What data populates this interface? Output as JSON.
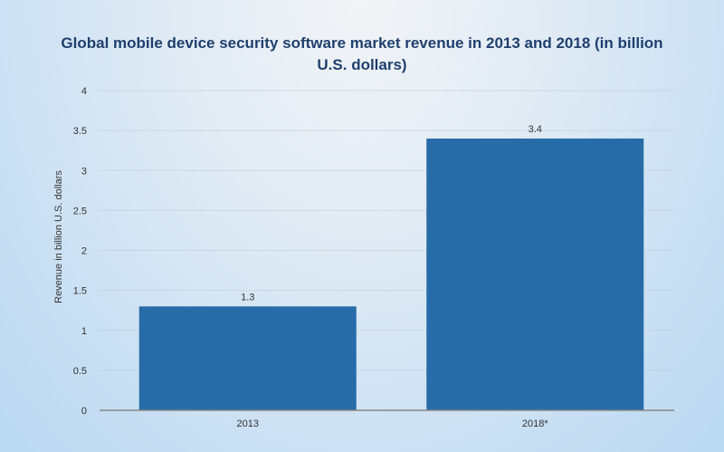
{
  "chart_data": {
    "type": "bar",
    "title": "Global mobile device security software market revenue in 2013 and 2018 (in billion U.S. dollars)",
    "categories": [
      "2013",
      "2018*"
    ],
    "values": [
      1.3,
      3.4
    ],
    "value_labels": [
      "1.3",
      "3.4"
    ],
    "xlabel": "",
    "ylabel": "Revenue in billion U.S. dollars",
    "ylim": [
      0,
      4
    ],
    "yticks": [
      0,
      0.5,
      1,
      1.5,
      2,
      2.5,
      3,
      3.5,
      4
    ],
    "ytick_labels": [
      "0",
      "0.5",
      "1",
      "1.5",
      "2",
      "2.5",
      "3",
      "3.5",
      "4"
    ],
    "grid": true,
    "bar_color": "#276ca8",
    "grid_color": "#b0b8c0",
    "axis_color": "#888888"
  }
}
